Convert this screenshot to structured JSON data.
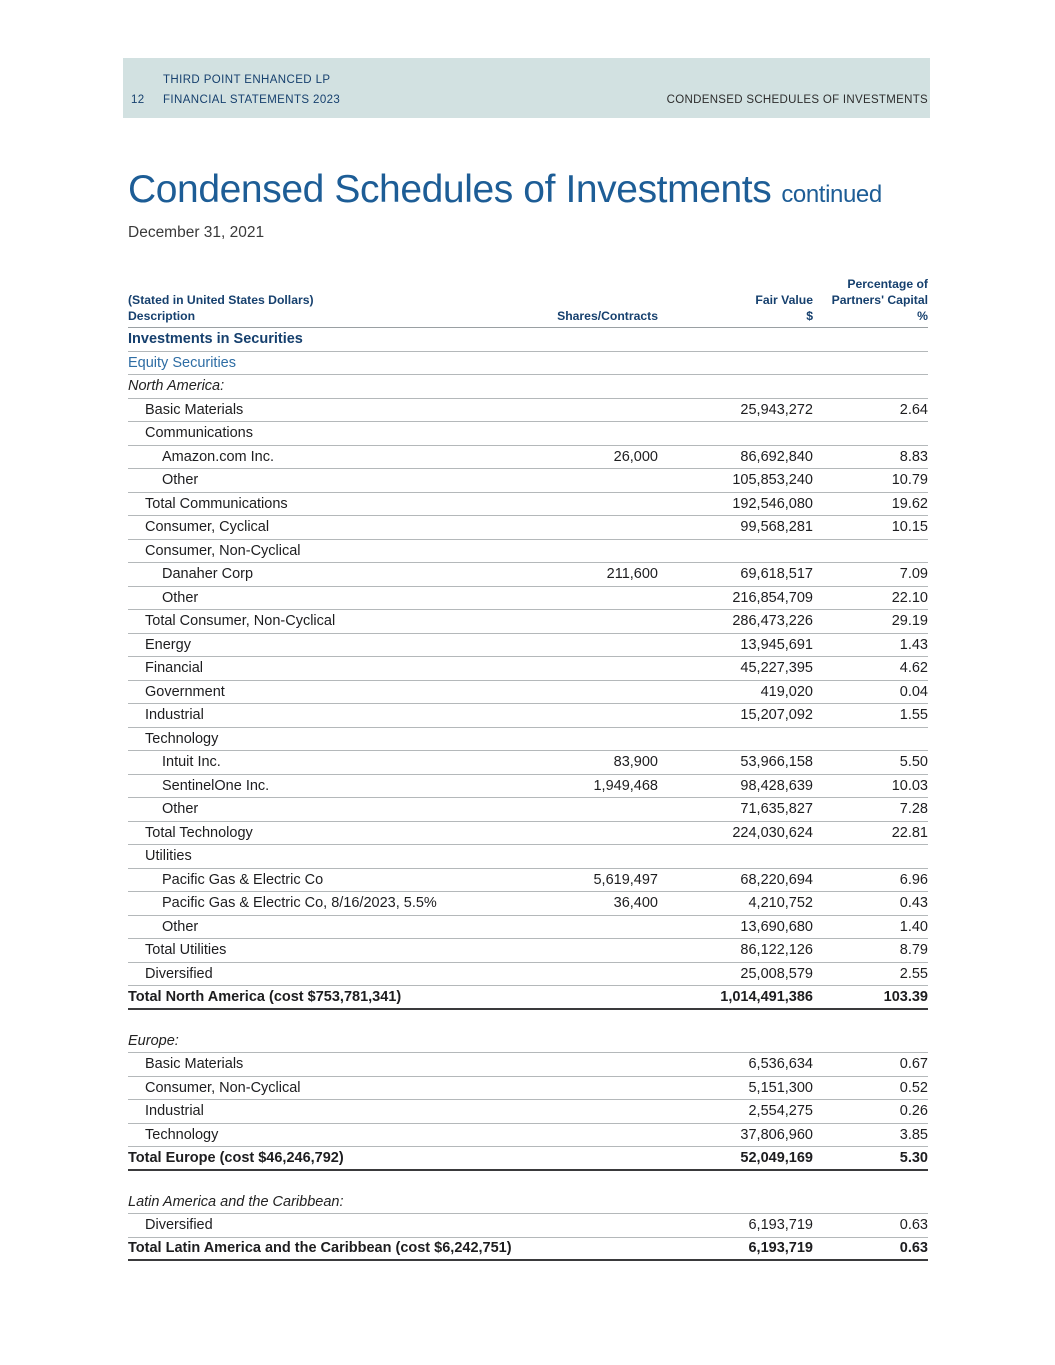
{
  "colors": {
    "band_bg": "#d2e1e1",
    "navy": "#16406e",
    "title_blue": "#1d5d96",
    "sub_blue": "#2e6da4"
  },
  "header": {
    "org": "THIRD POINT ENHANCED LP",
    "page_number": "12",
    "doc": "FINANCIAL STATEMENTS 2023",
    "section": "CONDENSED SCHEDULES OF INVESTMENTS"
  },
  "title": "Condensed Schedules of Investments",
  "title_suffix": "continued",
  "date": "December 31, 2021",
  "table": {
    "header": {
      "col1_line1": "(Stated in United States Dollars)",
      "col1_line2": "Description",
      "col2": "Shares/Contracts",
      "col3_line1": "Fair Value",
      "col3_line2": "$",
      "col4_line1": "Percentage of",
      "col4_line2": "Partners' Capital",
      "col4_line3": "%"
    },
    "rows": [
      {
        "type": "heading",
        "label": "Investments in Securities"
      },
      {
        "type": "subheading",
        "label": "Equity Securities"
      },
      {
        "type": "region",
        "label": "North America:"
      },
      {
        "type": "item",
        "indent": 1,
        "label": "Basic Materials",
        "fair_value": "25,943,272",
        "pct": "2.64"
      },
      {
        "type": "item",
        "indent": 1,
        "label": "Communications"
      },
      {
        "type": "item",
        "indent": 2,
        "label": "Amazon.com Inc.",
        "shares": "26,000",
        "fair_value": "86,692,840",
        "pct": "8.83"
      },
      {
        "type": "item",
        "indent": 2,
        "label": "Other",
        "fair_value": "105,853,240",
        "pct": "10.79"
      },
      {
        "type": "item",
        "indent": 1,
        "label": "Total Communications",
        "fair_value": "192,546,080",
        "pct": "19.62"
      },
      {
        "type": "item",
        "indent": 1,
        "label": "Consumer, Cyclical",
        "fair_value": "99,568,281",
        "pct": "10.15"
      },
      {
        "type": "item",
        "indent": 1,
        "label": "Consumer, Non-Cyclical"
      },
      {
        "type": "item",
        "indent": 2,
        "label": "Danaher Corp",
        "shares": "211,600",
        "fair_value": "69,618,517",
        "pct": "7.09"
      },
      {
        "type": "item",
        "indent": 2,
        "label": "Other",
        "fair_value": "216,854,709",
        "pct": "22.10"
      },
      {
        "type": "item",
        "indent": 1,
        "label": "Total Consumer, Non-Cyclical",
        "fair_value": "286,473,226",
        "pct": "29.19"
      },
      {
        "type": "item",
        "indent": 1,
        "label": "Energy",
        "fair_value": "13,945,691",
        "pct": "1.43"
      },
      {
        "type": "item",
        "indent": 1,
        "label": "Financial",
        "fair_value": "45,227,395",
        "pct": "4.62"
      },
      {
        "type": "item",
        "indent": 1,
        "label": "Government",
        "fair_value": "419,020",
        "pct": "0.04"
      },
      {
        "type": "item",
        "indent": 1,
        "label": "Industrial",
        "fair_value": "15,207,092",
        "pct": "1.55"
      },
      {
        "type": "item",
        "indent": 1,
        "label": "Technology"
      },
      {
        "type": "item",
        "indent": 2,
        "label": "Intuit Inc.",
        "shares": "83,900",
        "fair_value": "53,966,158",
        "pct": "5.50"
      },
      {
        "type": "item",
        "indent": 2,
        "label": "SentinelOne Inc.",
        "shares": "1,949,468",
        "fair_value": "98,428,639",
        "pct": "10.03"
      },
      {
        "type": "item",
        "indent": 2,
        "label": "Other",
        "fair_value": "71,635,827",
        "pct": "7.28"
      },
      {
        "type": "item",
        "indent": 1,
        "label": "Total Technology",
        "fair_value": "224,030,624",
        "pct": "22.81"
      },
      {
        "type": "item",
        "indent": 1,
        "label": "Utilities"
      },
      {
        "type": "item",
        "indent": 2,
        "label": "Pacific Gas & Electric Co",
        "shares": "5,619,497",
        "fair_value": "68,220,694",
        "pct": "6.96"
      },
      {
        "type": "item",
        "indent": 2,
        "label": "Pacific Gas & Electric Co, 8/16/2023, 5.5%",
        "shares": "36,400",
        "fair_value": "4,210,752",
        "pct": "0.43"
      },
      {
        "type": "item",
        "indent": 2,
        "label": "Other",
        "fair_value": "13,690,680",
        "pct": "1.40"
      },
      {
        "type": "item",
        "indent": 1,
        "label": "Total Utilities",
        "fair_value": "86,122,126",
        "pct": "8.79"
      },
      {
        "type": "item",
        "indent": 1,
        "label": "Diversified",
        "fair_value": "25,008,579",
        "pct": "2.55"
      },
      {
        "type": "total",
        "label": "Total North America (cost $753,781,341)",
        "fair_value": "1,014,491,386",
        "pct": "103.39"
      },
      {
        "type": "spacer"
      },
      {
        "type": "region",
        "label": "Europe:"
      },
      {
        "type": "item",
        "indent": 1,
        "label": "Basic Materials",
        "fair_value": "6,536,634",
        "pct": "0.67"
      },
      {
        "type": "item",
        "indent": 1,
        "label": "Consumer, Non-Cyclical",
        "fair_value": "5,151,300",
        "pct": "0.52"
      },
      {
        "type": "item",
        "indent": 1,
        "label": "Industrial",
        "fair_value": "2,554,275",
        "pct": "0.26"
      },
      {
        "type": "item",
        "indent": 1,
        "label": "Technology",
        "fair_value": "37,806,960",
        "pct": "3.85"
      },
      {
        "type": "total",
        "label": "Total Europe (cost $46,246,792)",
        "fair_value": "52,049,169",
        "pct": "5.30"
      },
      {
        "type": "spacer"
      },
      {
        "type": "region",
        "label": "Latin America and the Caribbean:"
      },
      {
        "type": "item",
        "indent": 1,
        "label": "Diversified",
        "fair_value": "6,193,719",
        "pct": "0.63"
      },
      {
        "type": "total",
        "label": "Total Latin America and the Caribbean (cost $6,242,751)",
        "fair_value": "6,193,719",
        "pct": "0.63"
      }
    ]
  }
}
